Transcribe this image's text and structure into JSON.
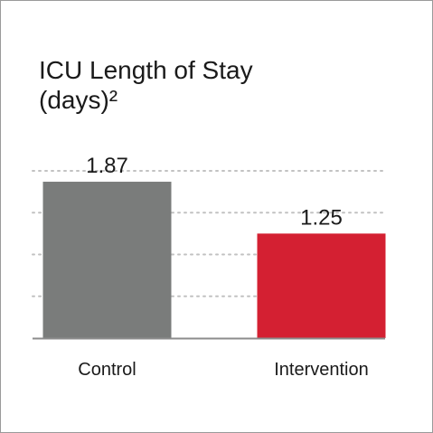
{
  "chart_data": {
    "type": "bar",
    "title": [
      "ICU Length of Stay",
      "(days)²"
    ],
    "xlabel": "",
    "ylabel": "",
    "categories": [
      "Control",
      "Intervention"
    ],
    "values": [
      1.87,
      1.25
    ],
    "value_labels": [
      "1.87",
      "1.25"
    ],
    "ylim": [
      0,
      2.0
    ],
    "grid": true,
    "legend": "none",
    "colors": {
      "bars": [
        "#7a7c7b",
        "#d42032"
      ],
      "grid": "#c2c2c2",
      "axis": "#8c8c8c",
      "text": "#1a1a1a",
      "border": "#9a9a9a"
    }
  }
}
